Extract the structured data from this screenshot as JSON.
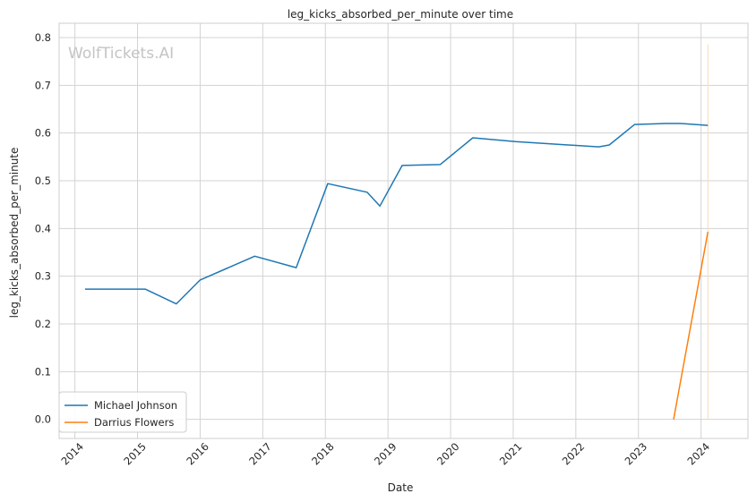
{
  "chart_data": {
    "type": "line",
    "title": "leg_kicks_absorbed_per_minute over time",
    "xlabel": "Date",
    "ylabel": "leg_kicks_absorbed_per_minute",
    "watermark": "WolfTickets.AI",
    "grid": true,
    "legend_position": "lower-left",
    "xlim": [
      "2013-10-01",
      "2024-10-01"
    ],
    "ylim": [
      -0.04,
      0.83
    ],
    "x_ticks": [
      "2014",
      "2015",
      "2016",
      "2017",
      "2018",
      "2019",
      "2020",
      "2021",
      "2022",
      "2023",
      "2024"
    ],
    "y_ticks": [
      "0.0",
      "0.1",
      "0.2",
      "0.3",
      "0.4",
      "0.5",
      "0.6",
      "0.7",
      "0.8"
    ],
    "series": [
      {
        "name": "Michael Johnson",
        "color": "#1f77b4",
        "points": [
          [
            "2014-03-01",
            0.273
          ],
          [
            "2015-02-15",
            0.273
          ],
          [
            "2015-08-15",
            0.242
          ],
          [
            "2016-01-01",
            0.292
          ],
          [
            "2016-11-15",
            0.342
          ],
          [
            "2017-07-15",
            0.318
          ],
          [
            "2018-01-15",
            0.494
          ],
          [
            "2018-09-01",
            0.476
          ],
          [
            "2018-11-15",
            0.447
          ],
          [
            "2019-03-25",
            0.532
          ],
          [
            "2019-11-01",
            0.534
          ],
          [
            "2020-05-10",
            0.59
          ],
          [
            "2021-01-15",
            0.582
          ],
          [
            "2022-05-15",
            0.571
          ],
          [
            "2022-07-15",
            0.575
          ],
          [
            "2022-12-10",
            0.618
          ],
          [
            "2023-06-10",
            0.62
          ],
          [
            "2023-09-01",
            0.62
          ],
          [
            "2024-02-10",
            0.616
          ]
        ]
      },
      {
        "name": "Darrius Flowers",
        "color": "#ff7f0e",
        "points": [
          [
            "2023-07-25",
            0.0
          ],
          [
            "2024-02-10",
            0.393
          ]
        ]
      }
    ],
    "vertical_marker": {
      "x": "2024-02-10",
      "ymax": 0.786,
      "color": "#f5deb3"
    }
  }
}
